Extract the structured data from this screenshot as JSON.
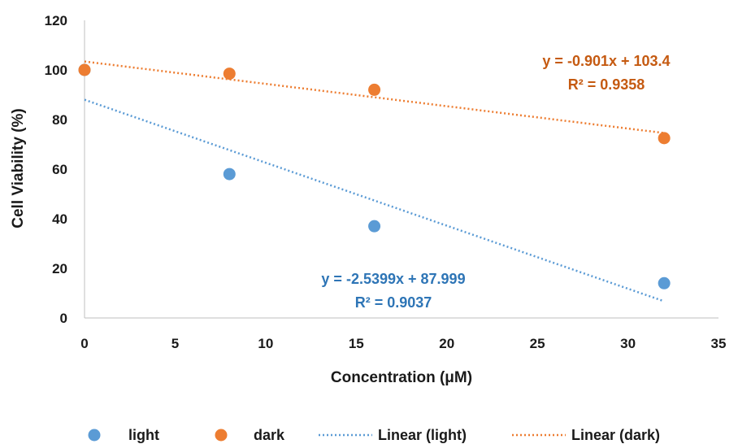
{
  "chart_data": {
    "type": "scatter",
    "xlabel": "Concentration (μM)",
    "ylabel": "Cell Viability (%)",
    "xlim": [
      0,
      35
    ],
    "ylim": [
      0,
      120
    ],
    "x_ticks": [
      0,
      5,
      10,
      15,
      20,
      25,
      30,
      35
    ],
    "y_ticks": [
      0,
      20,
      40,
      60,
      80,
      100,
      120
    ],
    "grid": false,
    "legend_position": "bottom",
    "series": [
      {
        "name": "light",
        "color": "#5b9bd5",
        "points": [
          [
            0,
            100
          ],
          [
            8,
            58
          ],
          [
            16,
            37
          ],
          [
            32,
            14
          ]
        ]
      },
      {
        "name": "dark",
        "color": "#ed7d31",
        "points": [
          [
            0,
            100
          ],
          [
            8,
            98.5
          ],
          [
            16,
            92
          ],
          [
            32,
            72.5
          ]
        ]
      }
    ],
    "trendlines": [
      {
        "name": "Linear (light)",
        "color": "#5b9bd5",
        "slope": -2.5399,
        "intercept": 87.999,
        "x_range": [
          0,
          32
        ],
        "equation": "y = -2.5399x + 87.999",
        "r2": "R² = 0.9037"
      },
      {
        "name": "Linear (dark)",
        "color": "#ed7d31",
        "slope": -0.901,
        "intercept": 103.4,
        "x_range": [
          0,
          32
        ],
        "equation": "y = -0.901x + 103.4",
        "r2": "R² = 0.9358"
      }
    ]
  }
}
